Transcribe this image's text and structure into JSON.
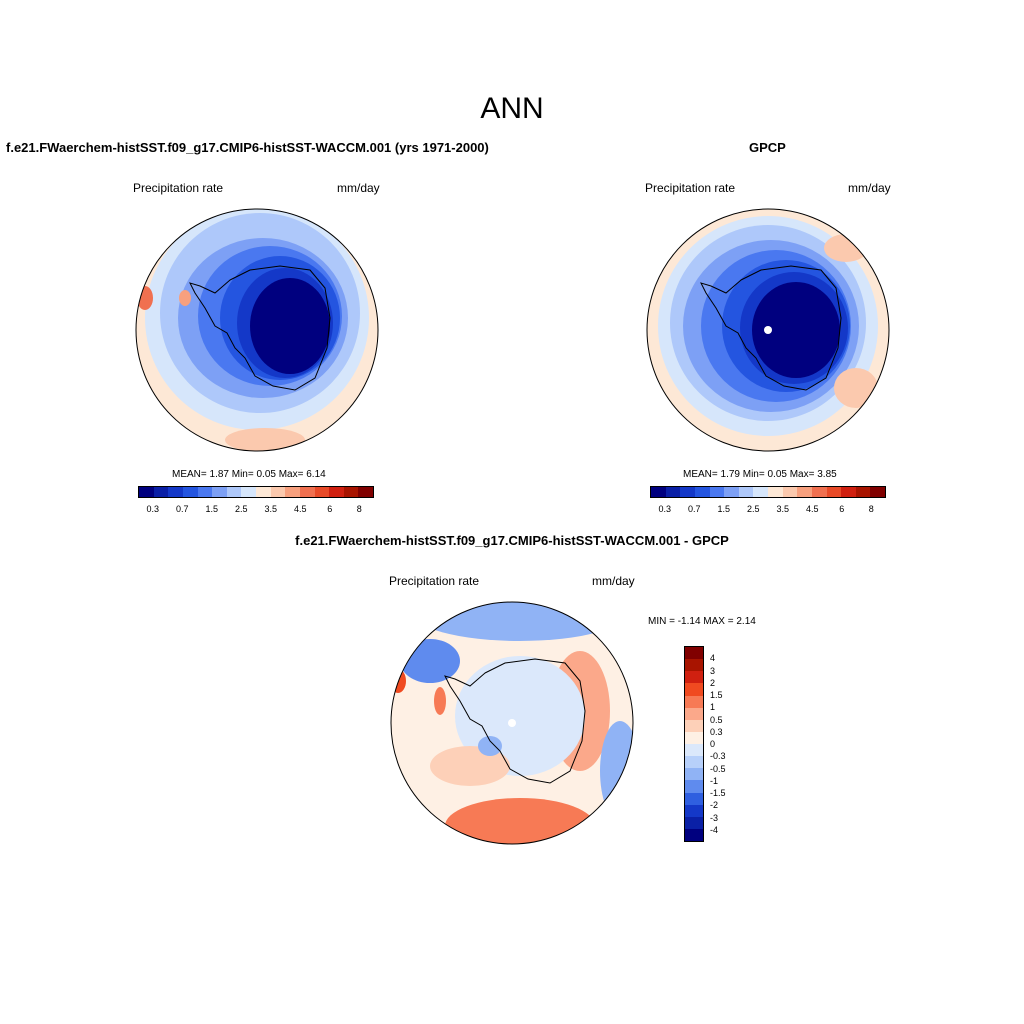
{
  "figure": {
    "title": "ANN"
  },
  "panels": [
    {
      "title": "f.e21.FWaerchem-histSST.f09_g17.CMIP6-histSST-WACCM.001 (yrs 1971-2000)",
      "left_label": "Precipitation rate",
      "right_label": "mm/day",
      "stats": "MEAN=   1.87  Min=   0.05  Max=   6.14",
      "colorbar_ticks": [
        "0.3",
        "0.7",
        "1.5",
        "2.5",
        "3.5",
        "4.5",
        "6",
        "8"
      ]
    },
    {
      "title": "GPCP",
      "left_label": "Precipitation rate",
      "right_label": "mm/day",
      "stats": "MEAN=   1.79  Min=   0.05  Max=   3.85",
      "colorbar_ticks": [
        "0.3",
        "0.7",
        "1.5",
        "2.5",
        "3.5",
        "4.5",
        "6",
        "8"
      ]
    },
    {
      "title": "f.e21.FWaerchem-histSST.f09_g17.CMIP6-histSST-WACCM.001 - GPCP",
      "left_label": "Precipitation rate",
      "right_label": "mm/day",
      "stats": "MIN =  -1.14 MAX =   2.14",
      "colorbar_ticks": [
        "4",
        "3",
        "2",
        "1.5",
        "1",
        "0.5",
        "0.3",
        "0",
        "-0.3",
        "-0.5",
        "-1",
        "-1.5",
        "-2",
        "-3",
        "-4"
      ]
    }
  ],
  "colors": {
    "sequential": [
      "#00007f",
      "#0a1fa6",
      "#1438c8",
      "#2455e0",
      "#4a78f0",
      "#7da0f5",
      "#aec8fa",
      "#d6e6fb",
      "#fde8d6",
      "#fbc9ae",
      "#f7a07e",
      "#f07050",
      "#e84a28",
      "#d02010",
      "#a81400",
      "#800000"
    ],
    "diverging": [
      "#800000",
      "#a81400",
      "#d02010",
      "#f04a20",
      "#f77a55",
      "#fba88a",
      "#fdd0b8",
      "#fef0e4",
      "#dbe8fb",
      "#b7d0fa",
      "#90b3f5",
      "#5f8bee",
      "#2f5fe0",
      "#1438c8",
      "#0a20a6",
      "#00007f"
    ],
    "coastline": "#000000"
  }
}
